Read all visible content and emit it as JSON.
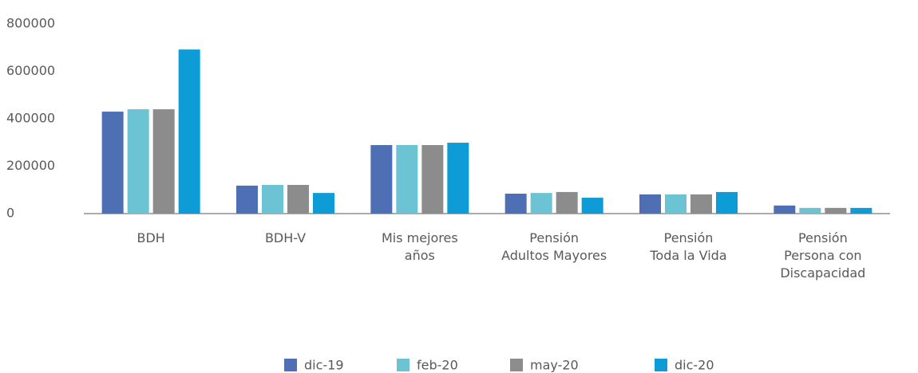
{
  "chart_data": {
    "type": "bar",
    "categories": [
      "BDH",
      "BDH-V",
      "Mis mejores\naños",
      "Pensión\nAdultos Mayores",
      "Pensión\nToda la Vida",
      "Pensión\nPersona con\nDiscapacidad"
    ],
    "series": [
      {
        "name": "dic-19",
        "color": "#4e6fb3",
        "values": [
          430000,
          118000,
          289000,
          84000,
          81000,
          34000
        ]
      },
      {
        "name": "feb-20",
        "color": "#6cc3d3",
        "values": [
          440000,
          121000,
          289000,
          87000,
          81000,
          24000
        ]
      },
      {
        "name": "may-20",
        "color": "#8c8c8c",
        "values": [
          440000,
          121000,
          289000,
          91000,
          81000,
          24000
        ]
      },
      {
        "name": "dic-20",
        "color": "#0e9cd6",
        "values": [
          692000,
          87000,
          299000,
          67000,
          91000,
          24000
        ]
      }
    ],
    "ylim": [
      0,
      800000
    ],
    "yticks": [
      0,
      200000,
      400000,
      600000,
      800000
    ]
  }
}
